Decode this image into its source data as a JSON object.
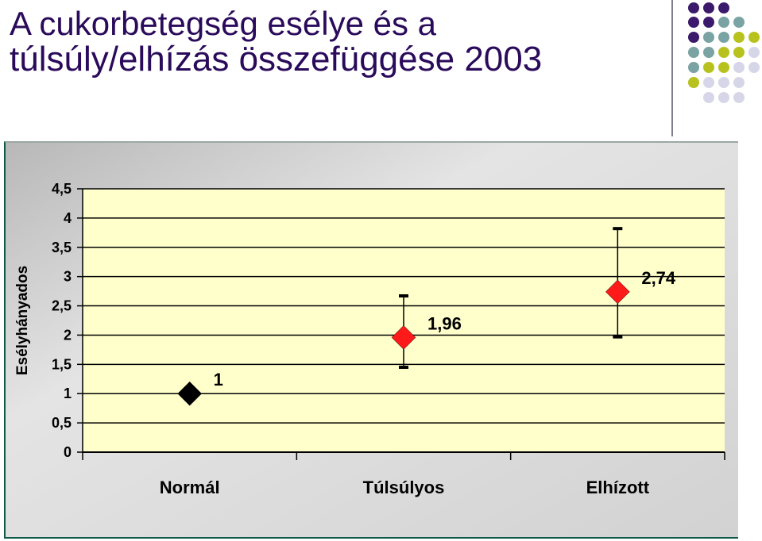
{
  "slide": {
    "title_line1": "A cukorbetegség esélye és a",
    "title_line2": "túlsúly/elhízás összefüggése 2003"
  },
  "decor": {
    "dot_colors": [
      "#3b1a6b",
      "#7aa3a3",
      "#b8c21e",
      "#d6d6e8"
    ]
  },
  "chart_data": {
    "type": "scatter",
    "title": "",
    "xlabel": "",
    "ylabel": "Esélyhányados",
    "ylim": [
      0,
      4.5
    ],
    "yticks": [
      "0",
      "0,5",
      "1",
      "1,5",
      "2",
      "2,5",
      "3",
      "3,5",
      "4",
      "4,5"
    ],
    "categories": [
      "Normál",
      "Túlsúlyos",
      "Elhízott"
    ],
    "values": [
      1,
      1.96,
      2.74
    ],
    "value_labels": [
      "1",
      "1,96",
      "2,74"
    ],
    "error_low": [
      null,
      1.45,
      1.97
    ],
    "error_high": [
      null,
      2.67,
      3.82
    ],
    "marker_colors": [
      "#000000",
      "#ff1a1a",
      "#ff1a1a"
    ],
    "plot_background": "#ffffcc",
    "frame_background": "#d9d9d9",
    "grid": true,
    "legend": "none"
  }
}
